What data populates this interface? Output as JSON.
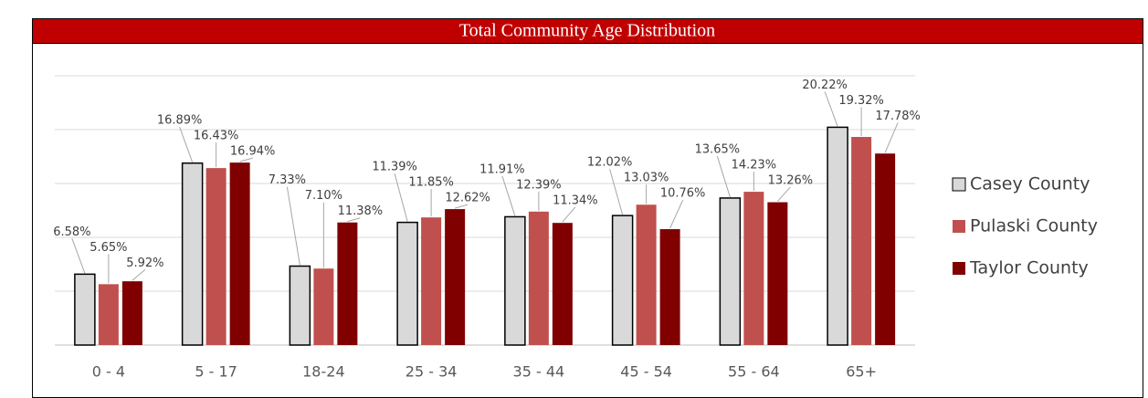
{
  "chart_data": {
    "type": "bar",
    "title": "Total Community Age Distribution",
    "categories": [
      "0 - 4",
      "5 - 17",
      "18-24",
      "25 - 34",
      "35 - 44",
      "45 - 54",
      "55 - 64",
      "65+"
    ],
    "series": [
      {
        "name": "Casey County",
        "color": "#d9d9d9",
        "values": [
          6.58,
          16.89,
          7.33,
          11.39,
          11.91,
          12.02,
          13.65,
          20.22
        ],
        "value_labels": [
          "6.58%",
          "16.89%",
          "7.33%",
          "11.39%",
          "11.91%",
          "12.02%",
          "13.65%",
          "20.22%"
        ]
      },
      {
        "name": "Pulaski County",
        "color": "#c0504d",
        "values": [
          5.65,
          16.43,
          7.1,
          11.85,
          12.39,
          13.03,
          14.23,
          19.32
        ],
        "value_labels": [
          "5.65%",
          "16.43%",
          "7.10%",
          "11.85%",
          "12.39%",
          "13.03%",
          "14.23%",
          "19.32%"
        ]
      },
      {
        "name": "Taylor County",
        "color": "#800000",
        "values": [
          5.92,
          16.94,
          11.38,
          12.62,
          11.34,
          10.76,
          13.26,
          17.78
        ],
        "value_labels": [
          "5.92%",
          "16.94%",
          "11.38%",
          "12.62%",
          "11.34%",
          "10.76%",
          "13.26%",
          "17.78%"
        ]
      }
    ],
    "ylim": [
      0,
      25
    ],
    "yticks": [
      0,
      5,
      10,
      15,
      20,
      25
    ],
    "grid": true,
    "legend": "right"
  }
}
